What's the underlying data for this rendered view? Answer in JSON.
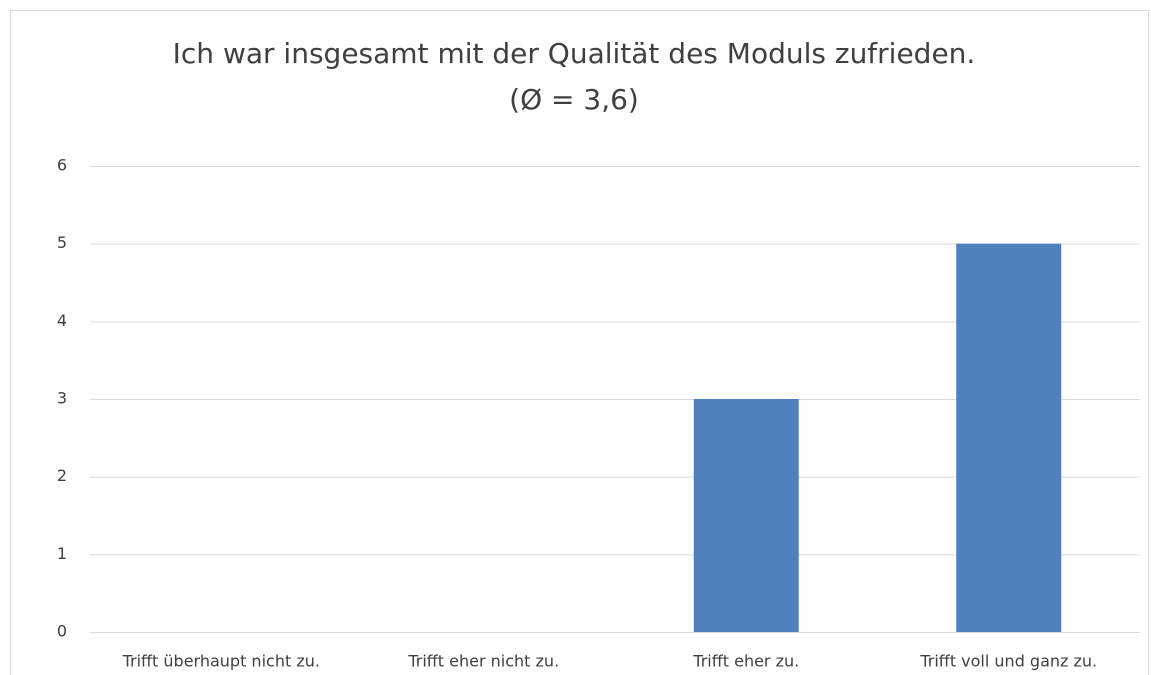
{
  "chart_data": {
    "type": "bar",
    "title": "Ich war insgesamt mit der Qualität des Moduls zufrieden.",
    "subtitle": "(Ø = 3,6)",
    "categories": [
      "Trifft überhaupt nicht zu.",
      "Trifft eher nicht zu.",
      "Trifft eher zu.",
      "Trifft voll und ganz zu."
    ],
    "values": [
      0,
      0,
      3,
      5
    ],
    "color": "#4f81bd",
    "ylim": [
      0,
      6
    ],
    "yticks": [
      0,
      1,
      2,
      3,
      4,
      5,
      6
    ],
    "grid": true
  }
}
